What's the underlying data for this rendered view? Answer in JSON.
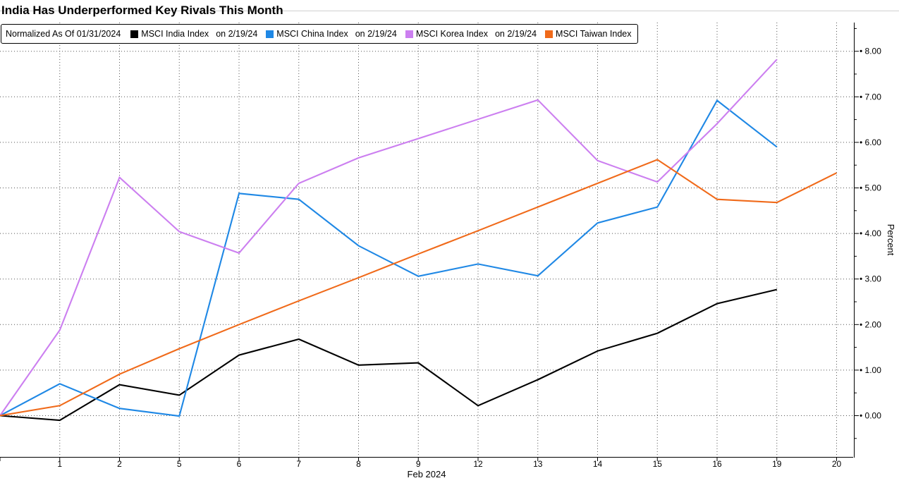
{
  "chart_data": {
    "type": "line",
    "title": "India Has Underperformed Key Rivals This Month",
    "legend_note": "Normalized As Of 01/31/2024",
    "xlabel": "Feb 2024",
    "ylabel": "Percent",
    "categories": [
      "",
      "1",
      "2",
      "5",
      "6",
      "7",
      "8",
      "9",
      "12",
      "13",
      "14",
      "15",
      "16",
      "19",
      "20"
    ],
    "ylim": [
      -1,
      8.5
    ],
    "yticks": [
      0,
      1,
      2,
      3,
      4,
      5,
      6,
      7,
      8
    ],
    "ytick_labels": [
      "0.00",
      "1.00",
      "2.00",
      "3.00",
      "4.00",
      "5.00",
      "6.00",
      "7.00",
      "8.00"
    ],
    "grid": true,
    "legend_position": "top-left",
    "series": [
      {
        "name": "MSCI India Index",
        "legend_suffix": "on 2/19/24",
        "color": "#000000",
        "values": [
          0,
          -0.1,
          0.68,
          0.45,
          1.33,
          1.68,
          1.11,
          1.16,
          0.22,
          0.79,
          1.42,
          1.81,
          2.46,
          2.77,
          null
        ]
      },
      {
        "name": "MSCI China Index",
        "legend_suffix": "on 2/19/24",
        "color": "#1f88e5",
        "values": [
          0,
          0.7,
          0.16,
          -0.01,
          4.88,
          4.75,
          3.73,
          3.06,
          3.33,
          3.07,
          4.23,
          4.58,
          6.92,
          5.9,
          null
        ]
      },
      {
        "name": "MSCI Korea Index",
        "legend_suffix": "on 2/19/24",
        "color": "#cc7ff0",
        "values": [
          0,
          1.88,
          5.23,
          4.04,
          3.57,
          5.1,
          5.66,
          null,
          null,
          6.93,
          5.6,
          5.13,
          6.41,
          7.82,
          null
        ]
      },
      {
        "name": "MSCI Taiwan Index",
        "legend_suffix": "",
        "color": "#f06a1a",
        "values": [
          0,
          0.22,
          0.91,
          1.47,
          2.0,
          2.52,
          3.03,
          3.55,
          4.06,
          4.58,
          5.1,
          5.62,
          4.75,
          4.68,
          5.33
        ]
      }
    ]
  }
}
